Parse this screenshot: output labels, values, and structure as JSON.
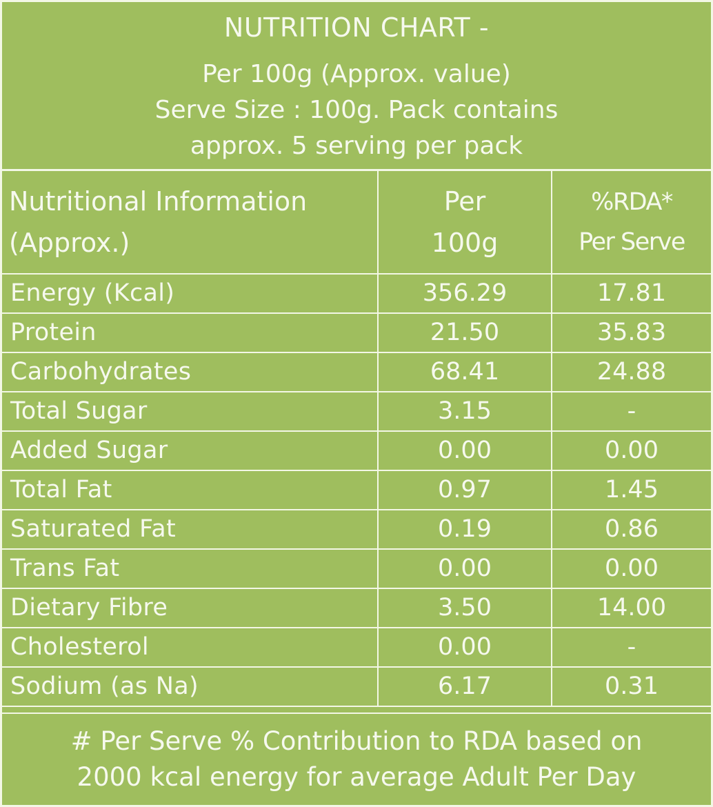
{
  "header": {
    "title": "NUTRITION CHART -",
    "line1": "Per 100g (Approx. value)",
    "line2": "Serve Size : 100g. Pack contains",
    "line3": "approx. 5 serving per pack"
  },
  "table": {
    "col_name_line1": "Nutritional Information",
    "col_name_line2": "(Approx.)",
    "col_per_line1": "Per",
    "col_per_line2": "100g",
    "col_rda_line1": "%RDA*",
    "col_rda_line2": "Per Serve",
    "rows": [
      {
        "name": "Energy (Kcal)",
        "per100g": "356.29",
        "rda": "17.81"
      },
      {
        "name": "Protein",
        "per100g": "21.50",
        "rda": "35.83"
      },
      {
        "name": "Carbohydrates",
        "per100g": "68.41",
        "rda": "24.88"
      },
      {
        "name": "Total Sugar",
        "per100g": "3.15",
        "rda": "-"
      },
      {
        "name": "Added Sugar",
        "per100g": "0.00",
        "rda": "0.00"
      },
      {
        "name": "Total Fat",
        "per100g": "0.97",
        "rda": "1.45"
      },
      {
        "name": "Saturated Fat",
        "per100g": "0.19",
        "rda": "0.86"
      },
      {
        "name": "Trans Fat",
        "per100g": "0.00",
        "rda": "0.00"
      },
      {
        "name": "Dietary Fibre",
        "per100g": "3.50",
        "rda": "14.00"
      },
      {
        "name": "Cholesterol",
        "per100g": "0.00",
        "rda": "-"
      },
      {
        "name": "Sodium (as Na)",
        "per100g": "6.17",
        "rda": "0.31"
      }
    ]
  },
  "footer": {
    "line1": "# Per Serve % Contribution to RDA based on",
    "line2": "2000 kcal energy for average Adult Per Day"
  },
  "colors": {
    "background": "#9fbe5e",
    "text": "#f6f9ee",
    "rule": "#f3f7e6"
  }
}
